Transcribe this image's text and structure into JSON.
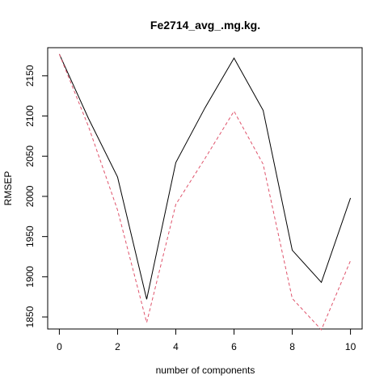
{
  "chart_data": {
    "type": "line",
    "title": "Fe2714_avg_.mg.kg.",
    "xlabel": "number of components",
    "ylabel": "RMSEP",
    "x": [
      0,
      1,
      2,
      3,
      4,
      5,
      6,
      7,
      8,
      9,
      10
    ],
    "xlim": [
      -0.4,
      10.4
    ],
    "ylim": [
      1835,
      2185
    ],
    "x_ticks": [
      "0",
      "2",
      "4",
      "6",
      "8",
      "10"
    ],
    "y_ticks": [
      "1850",
      "1900",
      "1950",
      "2000",
      "2050",
      "2100",
      "2150"
    ],
    "grid": false,
    "series": [
      {
        "style": "solid",
        "color": "#000000",
        "values": [
          2177,
          2097,
          2024,
          1872,
          2042,
          2110,
          2172,
          2107,
          1933,
          1893,
          1998
        ]
      },
      {
        "style": "dashed",
        "color": "#DF536B",
        "values": [
          2177,
          2087,
          1983,
          1843,
          1990,
          2047,
          2106,
          2040,
          1873,
          1834,
          1920
        ]
      }
    ]
  }
}
